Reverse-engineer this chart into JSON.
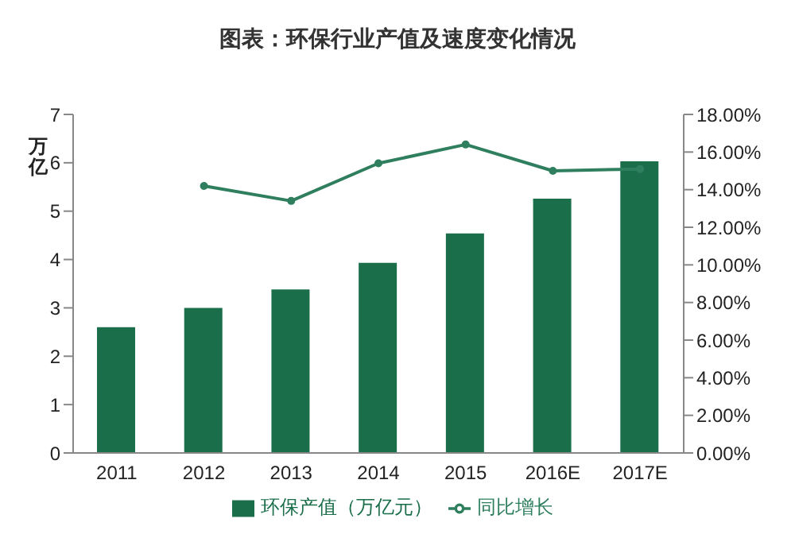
{
  "chart_data": {
    "type": "bar",
    "title": "图表：环保行业产值及速度变化情况",
    "ylabel": "万亿",
    "categories": [
      "2011",
      "2012",
      "2013",
      "2014",
      "2015",
      "2016E",
      "2017E"
    ],
    "series": [
      {
        "name": "环保产值（万亿元）",
        "color": "#1a6e4a",
        "values": [
          2.6,
          3.0,
          3.38,
          3.93,
          4.54,
          5.26,
          6.03
        ]
      },
      {
        "name": "同比增长",
        "type": "line",
        "axis": "y2",
        "color": "#2f7f5f",
        "marker": "circle",
        "values": [
          null,
          14.2,
          13.4,
          15.4,
          16.4,
          15.0,
          15.1
        ]
      }
    ],
    "ylim": [
      0,
      7
    ],
    "yticks": [
      0,
      1,
      2,
      3,
      4,
      5,
      6,
      7
    ],
    "y2lim": [
      0,
      18
    ],
    "y2ticks": [
      {
        "value": 0,
        "label": "0.00%"
      },
      {
        "value": 2,
        "label": "2.00%"
      },
      {
        "value": 4,
        "label": "4.00%"
      },
      {
        "value": 6,
        "label": "6.00%"
      },
      {
        "value": 8,
        "label": "8.00%"
      },
      {
        "value": 10,
        "label": "10.00%"
      },
      {
        "value": 12,
        "label": "12.00%"
      },
      {
        "value": 14,
        "label": "14.00%"
      },
      {
        "value": 16,
        "label": "16.00%"
      },
      {
        "value": 18,
        "label": "18.00%"
      }
    ],
    "grid": false,
    "legend": "bottom"
  }
}
